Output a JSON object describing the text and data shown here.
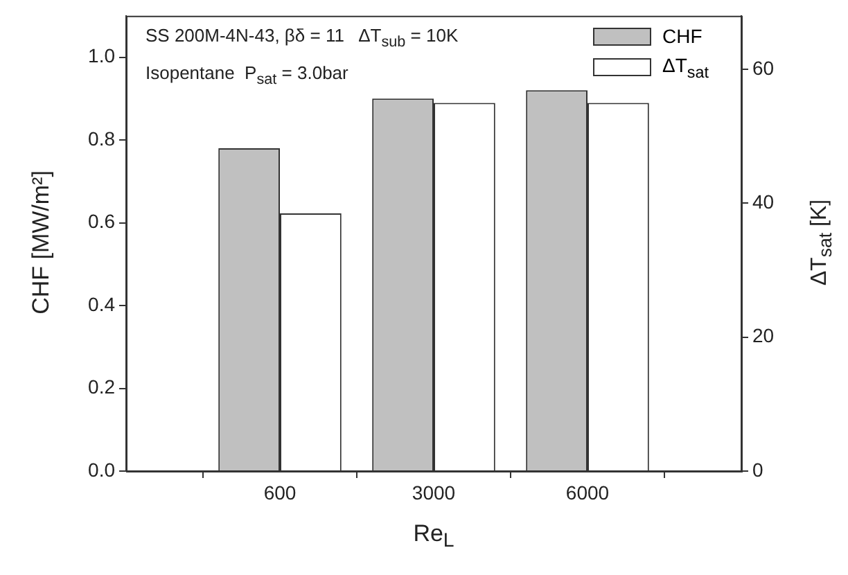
{
  "chart_data": {
    "type": "bar",
    "categories": [
      "600",
      "3000",
      "6000"
    ],
    "series": [
      {
        "name": "CHF",
        "color": "#c0c0c0",
        "values": [
          0.78,
          0.9,
          0.92
        ]
      },
      {
        "name": "ΔT$_{sat}$",
        "color": "#ffffff",
        "values": [
          38.5,
          55,
          55
        ],
        "axis": "y2"
      }
    ],
    "xlabel": "Re$_{L}$",
    "ylabel": "CHF [MW/m²]",
    "y2label": "ΔT$_{sat}$ [K]",
    "ylim": [
      0,
      1.1
    ],
    "yticks": [
      {
        "value": 0,
        "label": "0.0"
      },
      0.2,
      0.4,
      0.6,
      0.8,
      {
        "value": 1,
        "label": "1.0"
      }
    ],
    "y2lim": [
      0,
      68
    ],
    "y2ticks": [
      0,
      20,
      40,
      60
    ],
    "annotations": [
      "SS 200M-4N-43, βδ = 11   ΔT$_{sub}$ = 10K",
      "Isopentane  P$_{sat}$ = 3.0bar"
    ],
    "legend": "top right",
    "grid": false
  }
}
